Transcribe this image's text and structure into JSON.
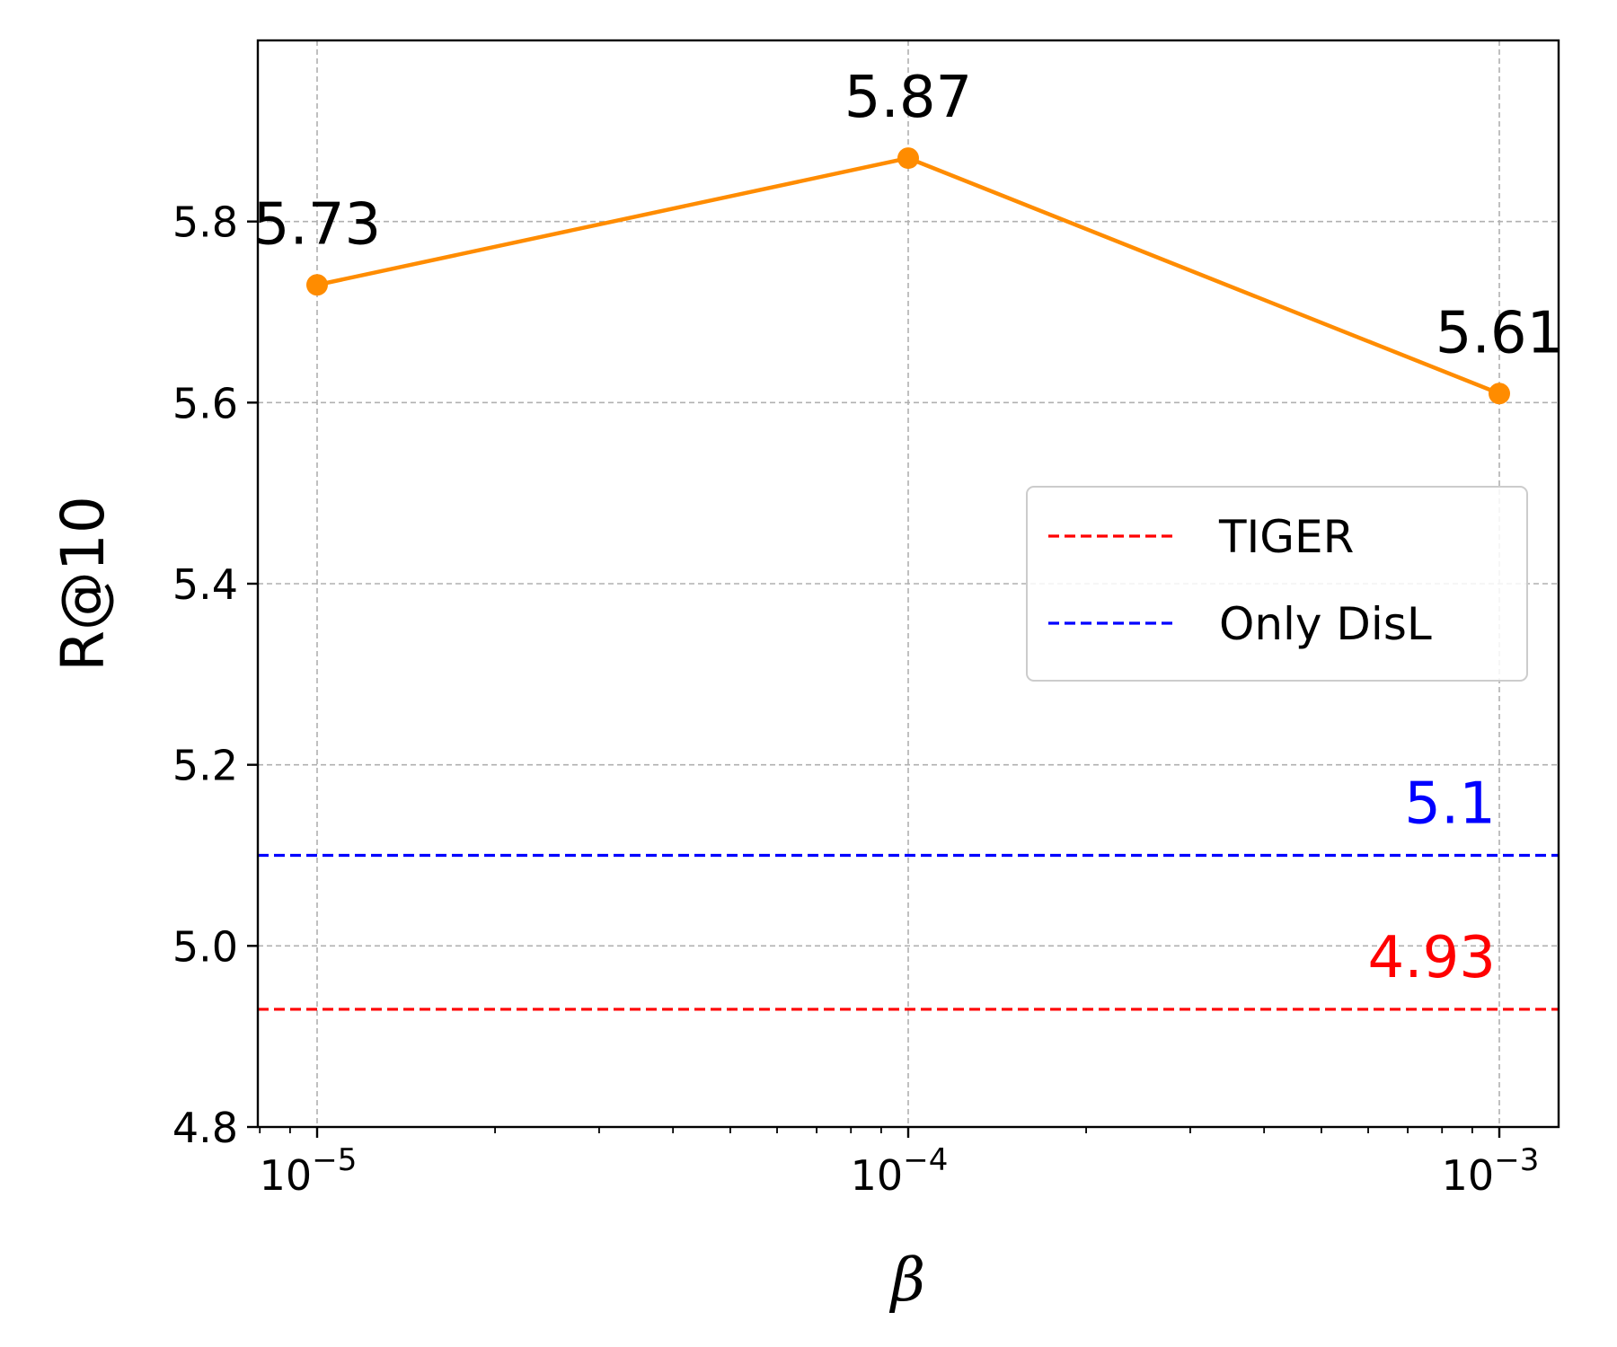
{
  "chart_data": {
    "type": "line",
    "xscale": "log",
    "x": [
      1e-05,
      0.0001,
      0.001
    ],
    "xtick_labels": [
      {
        "base": "10",
        "exp": "−5"
      },
      {
        "base": "10",
        "exp": "−4"
      },
      {
        "base": "10",
        "exp": "−3"
      }
    ],
    "xlabel": "β",
    "ylabel": "R@10",
    "ylim": [
      4.8,
      6.0
    ],
    "yticks": [
      4.8,
      5.0,
      5.2,
      5.4,
      5.6,
      5.8
    ],
    "ytick_labels": [
      "4.8",
      "5.0",
      "5.2",
      "5.4",
      "5.6",
      "5.8"
    ],
    "grid": true,
    "series": [
      {
        "name": "R@10",
        "values": [
          5.73,
          5.87,
          5.61
        ],
        "labels": [
          "5.73",
          "5.87",
          "5.61"
        ],
        "color": "#ff8c00"
      }
    ],
    "baselines": [
      {
        "name": "TIGER",
        "value": 4.93,
        "label": "4.93",
        "color": "#ff0000"
      },
      {
        "name": "Only DisL",
        "value": 5.1,
        "label": "5.1",
        "color": "#0000ff"
      }
    ],
    "legend_position": "center-right"
  }
}
